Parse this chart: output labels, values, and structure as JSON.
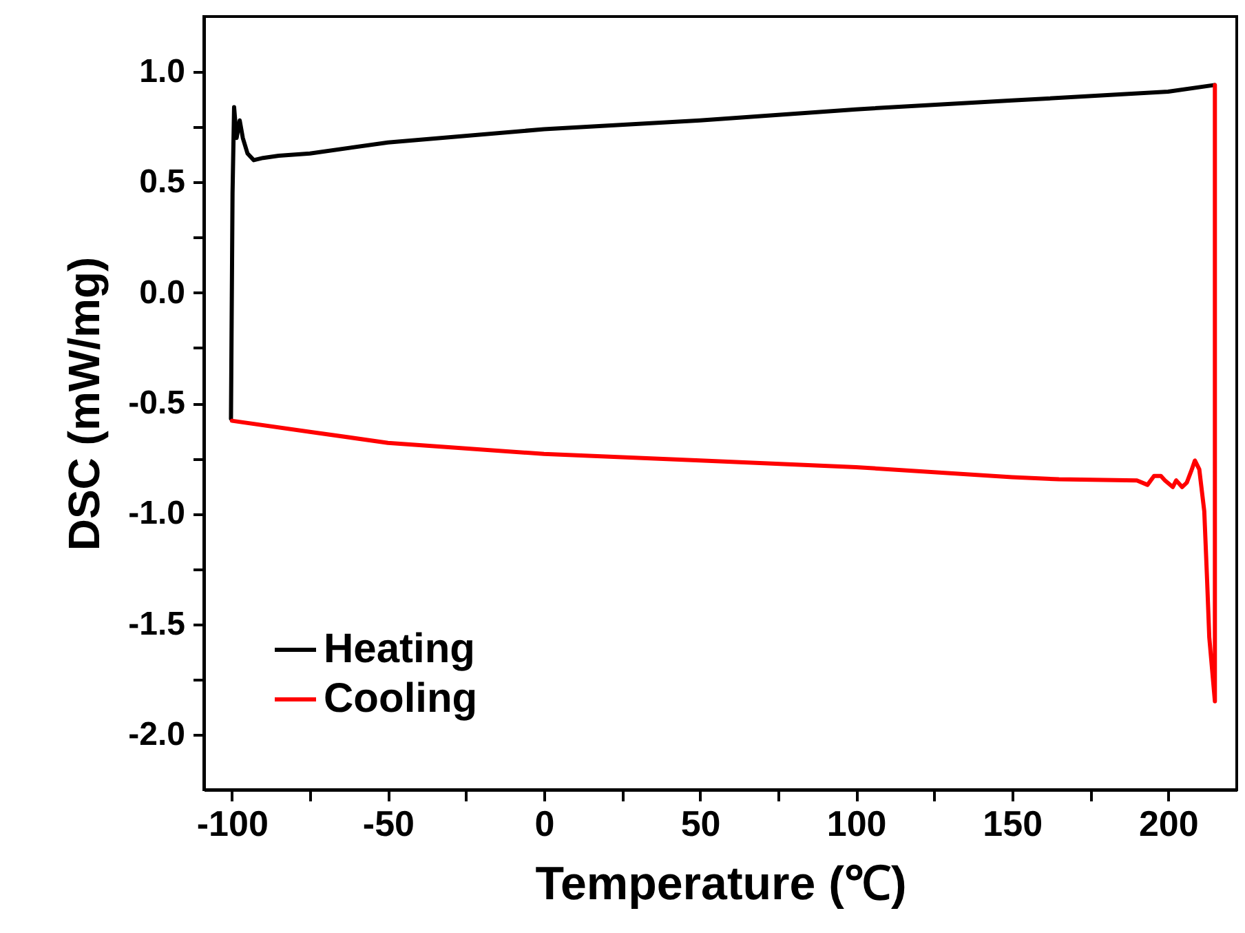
{
  "chart_data": {
    "type": "line",
    "xlabel": "Temperature (℃)",
    "ylabel": "DSC (mW/mg)",
    "xlim": [
      -109,
      222
    ],
    "ylim": [
      -2.25,
      1.25
    ],
    "xticks": [
      -100,
      {
        "value": -75,
        "label": null
      },
      -50,
      {
        "value": -25,
        "label": null
      },
      0,
      {
        "value": 25,
        "label": null
      },
      50,
      {
        "value": 75,
        "label": null
      },
      100,
      {
        "value": 125,
        "label": null
      },
      150,
      {
        "value": 175,
        "label": null
      },
      200
    ],
    "yticks": [
      {
        "value": -2.0,
        "label": "-2.0"
      },
      {
        "value": -1.75,
        "label": null
      },
      {
        "value": -1.5,
        "label": "-1.5"
      },
      {
        "value": -1.25,
        "label": null
      },
      {
        "value": -1.0,
        "label": "-1.0"
      },
      {
        "value": -0.75,
        "label": null
      },
      {
        "value": -0.5,
        "label": "-0.5"
      },
      {
        "value": -0.25,
        "label": null
      },
      {
        "value": 0.0,
        "label": "0.0"
      },
      {
        "value": 0.25,
        "label": null
      },
      {
        "value": 0.5,
        "label": "0.5"
      },
      {
        "value": 0.75,
        "label": null
      },
      {
        "value": 1.0,
        "label": "1.0"
      }
    ],
    "grid": false,
    "legend": "bottom left",
    "line_style": "solid",
    "series": [
      {
        "name": "Heating",
        "color": "#000000",
        "x": [
          -100.3,
          -99.8,
          -99.3,
          -98.5,
          -97.5,
          -96.5,
          -95,
          -93,
          -90,
          -85,
          -75,
          -50,
          0,
          50,
          100,
          150,
          200,
          214.9
        ],
        "values": [
          -0.57,
          0.45,
          0.84,
          0.7,
          0.78,
          0.7,
          0.63,
          0.6,
          0.61,
          0.62,
          0.63,
          0.68,
          0.74,
          0.78,
          0.83,
          0.87,
          0.91,
          0.94
        ]
      },
      {
        "name": "Cooling",
        "color": "#ff0000",
        "x": [
          215,
          215,
          213.2,
          212.5,
          211.6,
          210,
          208.6,
          207.6,
          206,
          204.5,
          202.6,
          201.5,
          199,
          197.7,
          195.5,
          193.4,
          190,
          165,
          150,
          100,
          50,
          0,
          -50,
          -75,
          -100
        ],
        "values": [
          0.94,
          -1.85,
          -1.56,
          -1.3,
          -0.99,
          -0.8,
          -0.76,
          -0.8,
          -0.86,
          -0.88,
          -0.85,
          -0.88,
          -0.85,
          -0.83,
          -0.83,
          -0.87,
          -0.85,
          -0.845,
          -0.835,
          -0.79,
          -0.76,
          -0.73,
          -0.68,
          -0.63,
          -0.58
        ]
      }
    ]
  }
}
